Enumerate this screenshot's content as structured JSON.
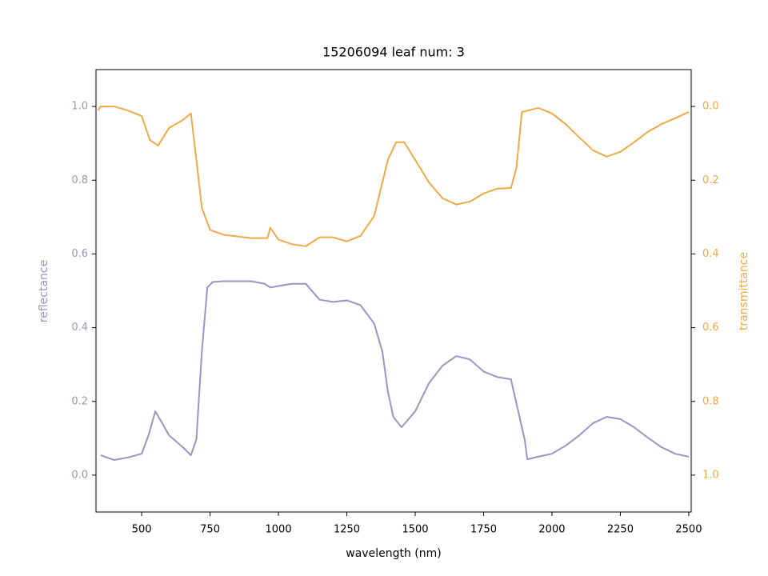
{
  "chart_data": {
    "type": "line",
    "title": "15206094 leaf num: 3",
    "xlabel": "wavelength (nm)",
    "ylabel": "reflectance",
    "y2label": "transmittance",
    "xlim": [
      333,
      2509
    ],
    "xticks": [
      500,
      750,
      1000,
      1250,
      1500,
      1750,
      2000,
      2250,
      2500
    ],
    "ylim": [
      -0.1,
      1.1
    ],
    "yticks": [
      {
        "value": 0,
        "label": "0.0"
      },
      0.2,
      0.4,
      0.6,
      0.8,
      {
        "value": 1,
        "label": "1.0"
      }
    ],
    "y2lim": [
      1.1,
      -0.1
    ],
    "y2ticks": [
      {
        "value": 0,
        "label": "0.0"
      },
      0.2,
      0.4,
      0.6,
      0.8,
      {
        "value": 1,
        "label": "1.0"
      }
    ],
    "series": [
      {
        "color": "#9a94c4",
        "axis": "y",
        "x": [
          350,
          400,
          450,
          500,
          525,
          550,
          575,
          600,
          650,
          680,
          700,
          720,
          740,
          760,
          800,
          900,
          950,
          970,
          1000,
          1050,
          1100,
          1150,
          1200,
          1250,
          1300,
          1350,
          1380,
          1400,
          1420,
          1450,
          1500,
          1550,
          1600,
          1650,
          1700,
          1750,
          1800,
          1850,
          1880,
          1900,
          1910,
          1950,
          2000,
          2050,
          2100,
          2150,
          2200,
          2250,
          2300,
          2350,
          2400,
          2450,
          2500
        ],
        "values": [
          0.054,
          0.041,
          0.048,
          0.058,
          0.108,
          0.173,
          0.141,
          0.108,
          0.076,
          0.054,
          0.097,
          0.335,
          0.509,
          0.524,
          0.526,
          0.526,
          0.519,
          0.509,
          0.513,
          0.519,
          0.519,
          0.476,
          0.47,
          0.474,
          0.461,
          0.411,
          0.335,
          0.227,
          0.158,
          0.13,
          0.173,
          0.249,
          0.297,
          0.323,
          0.314,
          0.281,
          0.266,
          0.26,
          0.162,
          0.097,
          0.043,
          0.05,
          0.058,
          0.08,
          0.108,
          0.141,
          0.158,
          0.152,
          0.13,
          0.102,
          0.076,
          0.058,
          0.05
        ]
      },
      {
        "color": "#f0a848",
        "axis": "y2",
        "x": [
          340,
          350,
          400,
          450,
          500,
          530,
          560,
          600,
          650,
          680,
          700,
          720,
          750,
          800,
          900,
          960,
          970,
          1000,
          1050,
          1100,
          1150,
          1200,
          1250,
          1300,
          1350,
          1400,
          1430,
          1460,
          1500,
          1550,
          1600,
          1650,
          1700,
          1750,
          1800,
          1850,
          1870,
          1890,
          1950,
          2000,
          2050,
          2100,
          2150,
          2200,
          2250,
          2300,
          2350,
          2400,
          2450,
          2500
        ],
        "values": [
          0.011,
          0.0,
          0.0,
          0.011,
          0.026,
          0.091,
          0.106,
          0.058,
          0.037,
          0.019,
          0.145,
          0.275,
          0.335,
          0.348,
          0.357,
          0.357,
          0.329,
          0.361,
          0.374,
          0.379,
          0.355,
          0.355,
          0.366,
          0.351,
          0.297,
          0.145,
          0.097,
          0.097,
          0.145,
          0.206,
          0.249,
          0.266,
          0.258,
          0.236,
          0.223,
          0.221,
          0.167,
          0.015,
          0.004,
          0.019,
          0.048,
          0.084,
          0.119,
          0.136,
          0.123,
          0.097,
          0.069,
          0.048,
          0.032,
          0.015
        ]
      }
    ]
  }
}
